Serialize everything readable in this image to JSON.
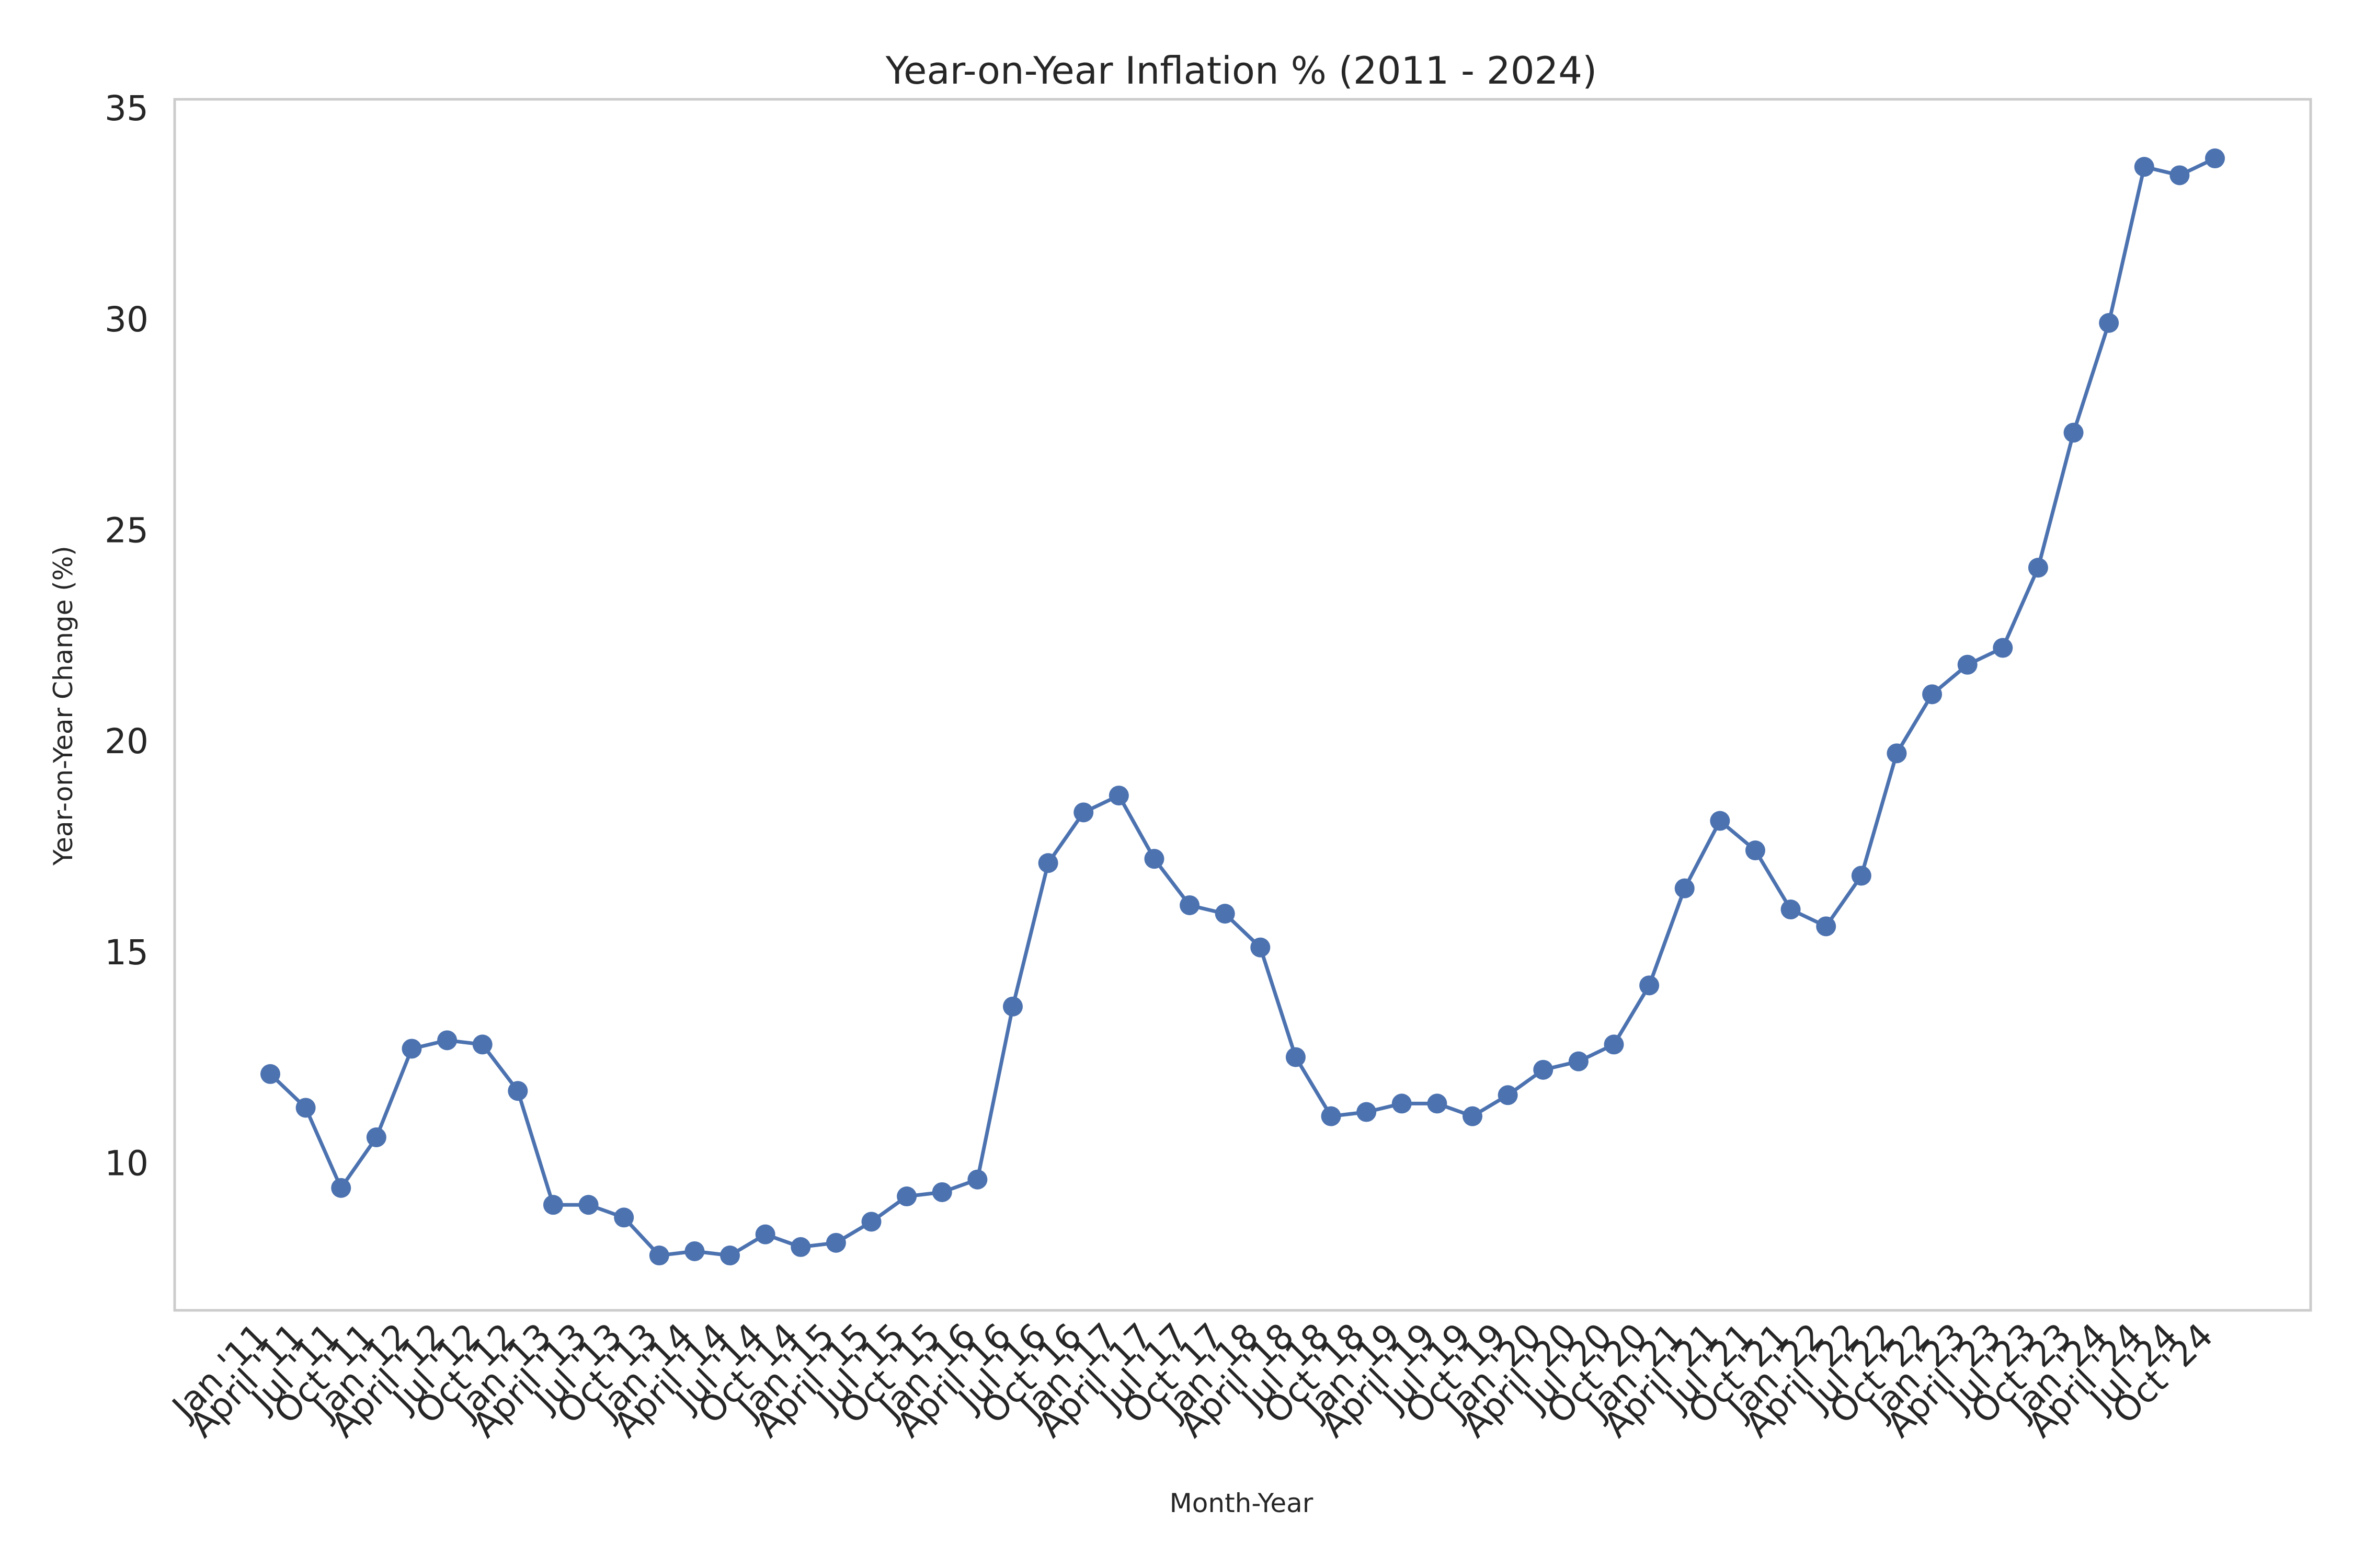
{
  "chart_data": {
    "type": "line",
    "title": "Year-on-Year Inflation % (2011 - 2024)",
    "xlabel": "Month-Year",
    "ylabel": "Year-on-Year Change (%)",
    "ylim": [
      6.5,
      35.2
    ],
    "yticks": [
      10,
      15,
      20,
      25,
      30,
      35
    ],
    "grid": false,
    "legend": "none",
    "line_color": "#4c72b0",
    "categories": [
      "Jan '11",
      "April '11",
      "Jul '11",
      "Oct '11",
      "Jan '12",
      "April '12",
      "Jul '12",
      "Oct '12",
      "Jan '13",
      "April '13",
      "Jul '13",
      "Oct '13",
      "Jan '14",
      "April '14",
      "Jul '14",
      "Oct '14",
      "Jan '15",
      "April '15",
      "Jul '15",
      "Oct '15",
      "Jan '16",
      "April '16",
      "Jul '16",
      "Oct '16",
      "Jan '17",
      "April '17",
      "Jul '17",
      "Oct '17",
      "Jan '18",
      "April '18",
      "Jul '18",
      "Oct '18",
      "Jan '19",
      "April '19",
      "Jul '19",
      "Oct '19",
      "Jan '20",
      "April '20",
      "Jul '20",
      "Oct '20",
      "Jan '21",
      "April '21",
      "Jul '21",
      "Oct '21",
      "Jan '22",
      "April '22",
      "Jul '22",
      "Oct '22",
      "Jan '23",
      "April '23",
      "Jul '23",
      "Oct '23",
      "Jan '24",
      "April '24",
      "Jul '24",
      "Oct '24"
    ],
    "values": [
      12.1,
      11.3,
      9.4,
      10.6,
      12.7,
      12.9,
      12.8,
      11.7,
      9.0,
      9.0,
      8.7,
      7.8,
      7.9,
      7.8,
      8.3,
      8.0,
      8.1,
      8.6,
      9.2,
      9.3,
      9.6,
      13.7,
      17.1,
      18.3,
      18.7,
      17.2,
      16.1,
      15.9,
      15.1,
      12.5,
      11.1,
      11.2,
      11.4,
      11.4,
      11.1,
      11.6,
      12.2,
      12.4,
      12.8,
      14.2,
      16.5,
      18.1,
      17.4,
      16.0,
      15.6,
      16.8,
      19.7,
      21.1,
      21.8,
      22.2,
      24.1,
      27.3,
      29.9,
      33.6,
      33.4,
      33.8
    ]
  }
}
